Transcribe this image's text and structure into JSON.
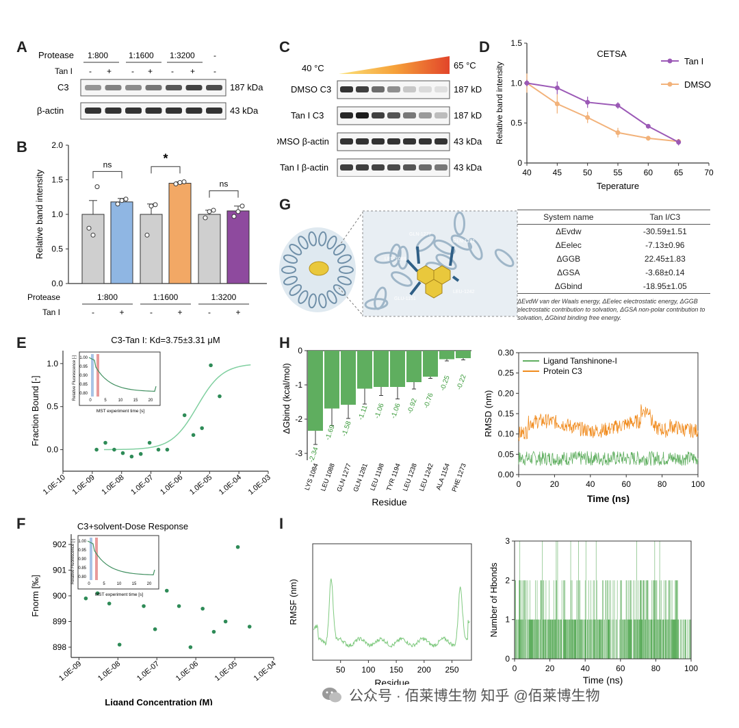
{
  "panel_labels": {
    "A": "A",
    "B": "B",
    "C": "C",
    "D": "D",
    "E": "E",
    "F": "F",
    "G": "G",
    "H": "H",
    "I": "I"
  },
  "blot_A": {
    "protease_label": "Protease",
    "ratios": [
      "1:800",
      "1:1600",
      "1:3200",
      "-"
    ],
    "tan_label": "Tan I",
    "tan_signs": [
      "-",
      "+",
      "-",
      "+",
      "-",
      "+",
      "-"
    ],
    "rows": [
      {
        "name": "C3",
        "kda": "187 kDa"
      },
      {
        "name": "β-actin",
        "kda": "43 kDa"
      }
    ]
  },
  "blot_C": {
    "temp_low": "40 °C",
    "temp_high": "65 °C",
    "rows": [
      {
        "name": "DMSO C3",
        "kda": "187 kDa"
      },
      {
        "name": "Tan I C3",
        "kda": "187 kDa"
      },
      {
        "name": "DMSO β-actin",
        "kda": "43 kDa"
      },
      {
        "name": "Tan I β-actin",
        "kda": "43 kDa"
      }
    ]
  },
  "table_G": {
    "headers": [
      "System name",
      "Tan I/C3"
    ],
    "rows": [
      {
        "name": "ΔEvdw",
        "value": "-30.59±1.51"
      },
      {
        "name": "ΔEelec",
        "value": "-7.13±0.96"
      },
      {
        "name": "ΔGGB",
        "value": "22.45±1.83"
      },
      {
        "name": "ΔGSA",
        "value": "-3.68±0.14"
      },
      {
        "name": "ΔGbind",
        "value": "-18.95±1.05"
      }
    ],
    "note": "ΔEvdW van der Waals energy, ΔEelec electrostatic energy, ΔGGB electrostatic contribution to solvation, ΔGSA non-polar contribution to solvation, ΔGbind binding free energy."
  },
  "docking_labels": [
    "GLN-1277",
    "GLN-1281",
    "LEU-1088",
    "LEU-1242",
    "GLU-1151"
  ],
  "watermark": "公众号 · 佰莱博生物 知乎 @佰莱博生物",
  "colors": {
    "grey": "#cfcfcf",
    "blue": "#8fb6e3",
    "orange": "#f2a865",
    "purple": "#8e4a9e",
    "green": "#5fae5f",
    "lightgreen": "#7fc97f",
    "dmso": "#f2b27a",
    "tan": "#9b59b6",
    "rmsd_orange": "#f08a1c"
  },
  "chart_data": [
    {
      "id": "B",
      "type": "bar",
      "ylabel": "Relative band intensity",
      "ylim": [
        0,
        2.0
      ],
      "yticks": [
        "0.0",
        "0.5",
        "1.0",
        "1.5",
        "2.0"
      ],
      "row1_label": "Protease",
      "row2_label": "Tan I",
      "groups": [
        "1:800",
        "1:1600",
        "1:3200"
      ],
      "signs": [
        "-",
        "+",
        "-",
        "+",
        "-",
        "+"
      ],
      "values": [
        1.0,
        1.18,
        1.0,
        1.45,
        1.0,
        1.05
      ],
      "errors": [
        0.2,
        0.05,
        0.15,
        0.02,
        0.06,
        0.07
      ],
      "points": [
        [
          0.8,
          0.7,
          1.4
        ],
        [
          1.15,
          1.2,
          1.22
        ],
        [
          0.7,
          1.12,
          1.14
        ],
        [
          1.44,
          1.46,
          1.47
        ],
        [
          0.95,
          1.04,
          1.06
        ],
        [
          0.97,
          1.04,
          1.12
        ]
      ],
      "brackets": [
        {
          "a": 0,
          "b": 1,
          "label": "ns"
        },
        {
          "a": 2,
          "b": 3,
          "label": "*"
        },
        {
          "a": 4,
          "b": 5,
          "label": "ns"
        }
      ]
    },
    {
      "id": "D",
      "type": "line",
      "title": "CETSA",
      "xlabel": "Teperature",
      "ylabel": "Relative band intensity",
      "xlim": [
        40,
        70
      ],
      "ylim": [
        0,
        1.5
      ],
      "xticks": [
        "40",
        "45",
        "50",
        "55",
        "60",
        "65",
        "70"
      ],
      "yticks": [
        "0",
        "0.5",
        "1.0",
        "1.5"
      ],
      "x": [
        40,
        45,
        50,
        55,
        60,
        65
      ],
      "series": [
        {
          "name": "Tan I",
          "values": [
            1.0,
            0.94,
            0.76,
            0.72,
            0.46,
            0.26
          ],
          "errors": [
            0.04,
            0.08,
            0.07,
            0.04,
            0.02,
            0.04
          ]
        },
        {
          "name": "DMSO",
          "values": [
            1.0,
            0.74,
            0.57,
            0.38,
            0.31,
            0.27
          ],
          "errors": [
            0.12,
            0.12,
            0.07,
            0.06,
            0.03,
            0.03
          ]
        }
      ]
    },
    {
      "id": "E",
      "type": "scatter",
      "title": "C3-Tan I: Kd=3.75±3.31 μM",
      "xlabel": "Ligand Concentration (M)",
      "ylabel": "Fraction Bound [-]",
      "xticks": [
        "1.0E-10",
        "1.0E-09",
        "1.0E-08",
        "1.0E-07",
        "1.0E-06",
        "1.0E-05",
        "1.0E-04",
        "1.0E-03"
      ],
      "yticks": [
        "0.0",
        "0.5",
        "1.0"
      ],
      "ylim": [
        -0.25,
        1.15
      ],
      "x": [
        1.4e-09,
        2.8e-09,
        5.6e-09,
        1.1e-08,
        2.2e-08,
        4.5e-08,
        9e-08,
        1.8e-07,
        3.6e-07,
        1.4e-06,
        2.8e-06,
        5.5e-06,
        1.1e-05,
        2.2e-05
      ],
      "y": [
        0.0,
        0.08,
        0.0,
        -0.04,
        -0.08,
        -0.05,
        0.08,
        0.0,
        0.0,
        0.4,
        0.17,
        0.25,
        0.98,
        0.62
      ],
      "fit_kd": 3.75e-06,
      "inset": {
        "ylabel": "Relative Fluorescence [-]",
        "xlabel": "MST experiment time [s]",
        "xticks": [
          "0",
          "5",
          "10",
          "15",
          "20"
        ],
        "yticks": [
          "1.00",
          "0.95",
          "0.90",
          "0.85",
          "0.80"
        ]
      }
    },
    {
      "id": "F",
      "type": "scatter",
      "title": "C3+solvent-Dose Response",
      "xlabel": "Ligand Concentration (M)",
      "ylabel": "Fnorm [‰]",
      "xticks": [
        "1.0E-09",
        "1.0E-08",
        "1.0E-07",
        "1.0E-06",
        "1.0E-05",
        "1.0E-04"
      ],
      "yticks": [
        "898",
        "899",
        "900",
        "901",
        "902"
      ],
      "ylim": [
        897.6,
        902.4
      ],
      "x": [
        1.5e-09,
        3e-09,
        6e-09,
        1.1e-08,
        2.3e-08,
        4.6e-08,
        9e-08,
        1.8e-07,
        3.7e-07,
        7.3e-07,
        1.5e-06,
        2.9e-06,
        5.8e-06,
        1.2e-05,
        2.4e-05
      ],
      "y": [
        899.9,
        900.1,
        899.7,
        898.1,
        900.9,
        899.6,
        898.7,
        900.2,
        899.6,
        898.0,
        899.5,
        898.6,
        899.0,
        901.9,
        898.8
      ],
      "inset": {
        "ylabel": "Relative Fluorescence [-]",
        "xlabel": "MST experiment time [s]",
        "xticks": [
          "0",
          "5",
          "10",
          "15",
          "20"
        ],
        "yticks": [
          "1.00",
          "0.95",
          "0.90",
          "0.85",
          "0.80"
        ]
      }
    },
    {
      "id": "H",
      "type": "bar",
      "xlabel": "Residue",
      "ylabel": "ΔGbind (kcal/mol)",
      "ylim": [
        -3.2,
        0
      ],
      "yticks": [
        "0",
        "-1",
        "-2",
        "-3"
      ],
      "categories": [
        "LYS 1084",
        "LEU 1088",
        "GLN 1277",
        "GLN 1281",
        "LEU 1198",
        "TYR 1194",
        "LEU 1238",
        "LEU 1242",
        "ALA 1154",
        "PHE 1273"
      ],
      "values": [
        -2.34,
        -1.69,
        -1.58,
        -1.11,
        -1.06,
        -1.06,
        -0.92,
        -0.76,
        -0.25,
        -0.22
      ],
      "labels": [
        "-2.34",
        "-1.69",
        "-1.58",
        "-1.11",
        "-1.06",
        "-1.06",
        "-0.92",
        "-0.76",
        "-0.25",
        "-0.22"
      ],
      "errors": [
        0.4,
        0.5,
        0.4,
        0.45,
        0.25,
        0.35,
        0.2,
        0.05,
        0.05,
        0.05
      ]
    },
    {
      "id": "H2",
      "type": "line",
      "xlabel": "Time (ns)",
      "ylabel": "RMSD (nm)",
      "xlim": [
        0,
        100
      ],
      "ylim": [
        0,
        0.3
      ],
      "xticks": [
        "0",
        "20",
        "40",
        "60",
        "80",
        "100"
      ],
      "yticks": [
        "0.00",
        "0.05",
        "0.10",
        "0.15",
        "0.20",
        "0.25",
        "0.30"
      ],
      "series": [
        {
          "name": "Ligand Tanshinone-I",
          "mean": 0.04,
          "noise": 0.012
        },
        {
          "name": "Protein C3",
          "mean": 0.12,
          "noise": 0.012
        }
      ]
    },
    {
      "id": "I",
      "type": "line",
      "xlabel": "Residue",
      "ylabel": "RMSF (nm)",
      "xlim": [
        0,
        285
      ],
      "xticks": [
        "50",
        "100",
        "150",
        "200",
        "250"
      ],
      "peaks": [
        {
          "x": 33,
          "h": 1.0
        },
        {
          "x": 265,
          "h": 0.85
        }
      ]
    },
    {
      "id": "I2",
      "type": "bar",
      "xlabel": "Time (ns)",
      "ylabel": "Number of Hbonds",
      "xlim": [
        0,
        100
      ],
      "ylim": [
        0,
        3
      ],
      "xticks": [
        "0",
        "20",
        "40",
        "60",
        "80",
        "100"
      ],
      "yticks": [
        "0",
        "1",
        "2",
        "3"
      ]
    }
  ]
}
